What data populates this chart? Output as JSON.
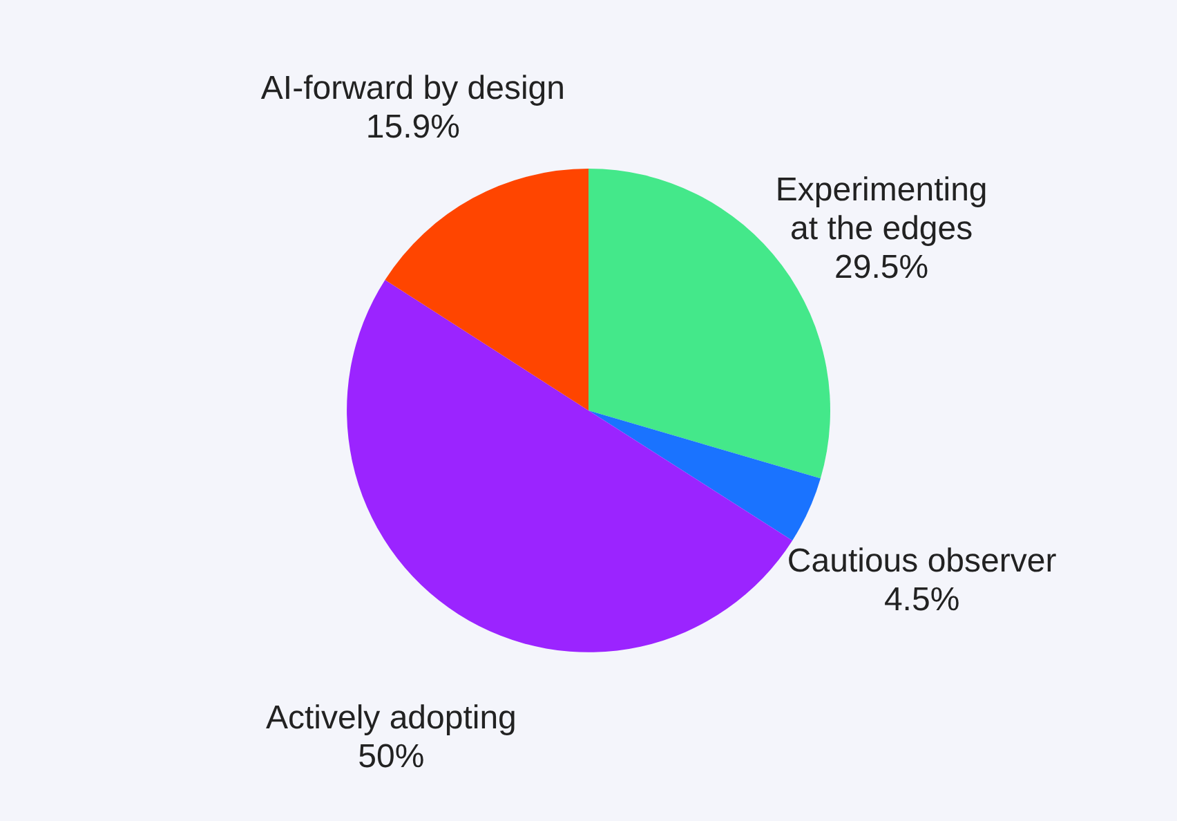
{
  "chart_data": {
    "type": "pie",
    "categories": [
      "Experimenting at the edges",
      "Cautious observer",
      "Actively adopting",
      "AI-forward by design"
    ],
    "values": [
      29.5,
      4.5,
      50,
      15.9
    ],
    "colors": [
      "#44e88a",
      "#1a73ff",
      "#9b24ff",
      "#ff4500"
    ],
    "value_labels": [
      "29.5%",
      "4.5%",
      "50%",
      "15.9%"
    ],
    "legend": false
  }
}
